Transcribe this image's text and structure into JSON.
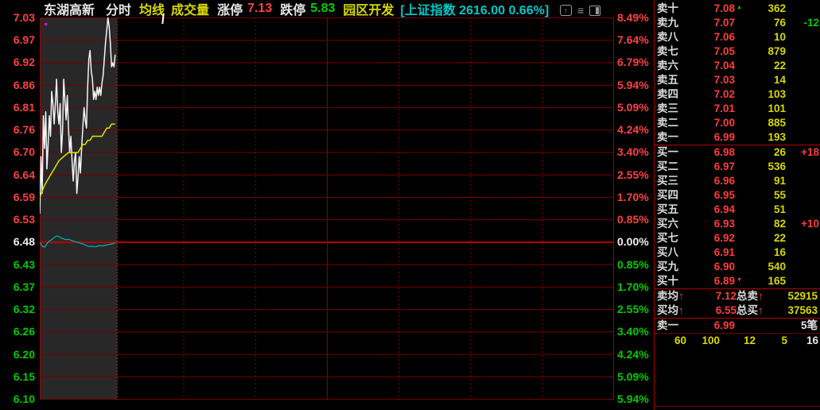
{
  "header": {
    "stock_name": "东湖高新",
    "tab_minute": "分时",
    "tab_avg_line": "均线",
    "tab_volume": "成交量",
    "limit_up_label": "涨停",
    "limit_up_value": "7.13",
    "limit_down_label": "跌停",
    "limit_down_value": "5.83",
    "sector": "园区开发",
    "index_info": "[上证指数 2616.00 0.66%]",
    "icons": [
      "top-circle-icon",
      "menu-icon",
      "layout-icon"
    ]
  },
  "glyphs": {
    "up_arrow": "↑",
    "ask_scroll_up": "▲",
    "bid_scroll_down": "▼"
  },
  "colors": {
    "up_red": "#ff3c3c",
    "down_green": "#00cc00",
    "volume_yellow": "#d8d800",
    "grid_red": "#780000",
    "index_cyan": "#00c8c8",
    "elapsed_band": "#282828"
  },
  "chart_data": {
    "type": "line",
    "title": "东湖高新 分时",
    "prev_close": 6.48,
    "session_minutes": 240,
    "current_minute": 31.5,
    "y_top_price": 7.031,
    "y_bottom_price": 6.0945,
    "grid": true,
    "left_axis_prices": [
      "7.03",
      "6.97",
      "6.92",
      "6.86",
      "6.81",
      "6.76",
      "6.70",
      "6.64",
      "6.59",
      "6.53",
      "6.48",
      "6.43",
      "6.37",
      "6.32",
      "6.26",
      "6.20",
      "6.15",
      "6.10"
    ],
    "right_axis_pcts": [
      "8.49%",
      "7.64%",
      "6.79%",
      "5.94%",
      "5.09%",
      "4.24%",
      "3.40%",
      "2.55%",
      "1.70%",
      "0.85%",
      "0.00%",
      "0.85%",
      "1.70%",
      "2.55%",
      "3.40%",
      "4.24%",
      "5.09%",
      "5.94%"
    ],
    "series": [
      {
        "name": "price",
        "points": [
          [
            0,
            6.55
          ],
          [
            0.5,
            6.69
          ],
          [
            1,
            6.6
          ],
          [
            1.5,
            6.79
          ],
          [
            2,
            6.71
          ],
          [
            2.5,
            6.8
          ],
          [
            3,
            6.66
          ],
          [
            3.5,
            6.72
          ],
          [
            4,
            6.79
          ],
          [
            4.5,
            6.74
          ],
          [
            5,
            6.85
          ],
          [
            5.5,
            6.82
          ],
          [
            6,
            6.77
          ],
          [
            6.5,
            6.82
          ],
          [
            7,
            6.88
          ],
          [
            7.5,
            6.8
          ],
          [
            8,
            6.77
          ],
          [
            8.5,
            6.82
          ],
          [
            9,
            6.7
          ],
          [
            9.5,
            6.75
          ],
          [
            10,
            6.88
          ],
          [
            10.5,
            6.83
          ],
          [
            11,
            6.78
          ],
          [
            11.5,
            6.84
          ],
          [
            12,
            6.76
          ],
          [
            12.5,
            6.7
          ],
          [
            13,
            6.74
          ],
          [
            13.5,
            6.68
          ],
          [
            14,
            6.63
          ],
          [
            14.5,
            6.68
          ],
          [
            15,
            6.7
          ],
          [
            15.5,
            6.6
          ],
          [
            16,
            6.64
          ],
          [
            16.5,
            6.69
          ],
          [
            17,
            6.65
          ],
          [
            17.5,
            6.71
          ],
          [
            18,
            6.76
          ],
          [
            18.5,
            6.81
          ],
          [
            19,
            6.78
          ],
          [
            19.5,
            6.76
          ],
          [
            20,
            6.86
          ],
          [
            20.5,
            6.93
          ],
          [
            21,
            6.95
          ],
          [
            21.5,
            6.9
          ],
          [
            22,
            6.88
          ],
          [
            22.5,
            6.83
          ],
          [
            23,
            6.85
          ],
          [
            23.5,
            6.83
          ],
          [
            24,
            6.86
          ],
          [
            24.5,
            6.84
          ],
          [
            25,
            6.86
          ],
          [
            25.5,
            6.84
          ],
          [
            26,
            6.87
          ],
          [
            26.5,
            6.89
          ],
          [
            27,
            6.93
          ],
          [
            27.5,
            6.97
          ],
          [
            28,
            7.0
          ],
          [
            28.5,
            7.03
          ],
          [
            29,
            7.01
          ],
          [
            29.5,
            6.97
          ],
          [
            30,
            6.91
          ],
          [
            30.5,
            6.92
          ],
          [
            31,
            6.91
          ],
          [
            31.5,
            6.94
          ]
        ]
      },
      {
        "name": "average",
        "points": [
          [
            0,
            6.59
          ],
          [
            2,
            6.62
          ],
          [
            4,
            6.64
          ],
          [
            6,
            6.66
          ],
          [
            8,
            6.68
          ],
          [
            10,
            6.69
          ],
          [
            12,
            6.7
          ],
          [
            14,
            6.7
          ],
          [
            16,
            6.7
          ],
          [
            17,
            6.71
          ],
          [
            18,
            6.72
          ],
          [
            19,
            6.72
          ],
          [
            20,
            6.73
          ],
          [
            21,
            6.73
          ],
          [
            22,
            6.74
          ],
          [
            23,
            6.74
          ],
          [
            24,
            6.74
          ],
          [
            25,
            6.74
          ],
          [
            26,
            6.74
          ],
          [
            27,
            6.75
          ],
          [
            28,
            6.76
          ],
          [
            29,
            6.76
          ],
          [
            30,
            6.77
          ],
          [
            31.5,
            6.77
          ]
        ]
      },
      {
        "name": "index_pct",
        "points": [
          [
            0,
            0.0
          ],
          [
            0.5,
            -0.06
          ],
          [
            1,
            -0.15
          ],
          [
            2,
            -0.18
          ],
          [
            3,
            -0.05
          ],
          [
            4,
            0.05
          ],
          [
            5,
            0.1
          ],
          [
            6,
            0.18
          ],
          [
            7,
            0.24
          ],
          [
            8,
            0.22
          ],
          [
            9,
            0.16
          ],
          [
            10,
            0.13
          ],
          [
            11,
            0.1
          ],
          [
            12,
            0.12
          ],
          [
            13,
            0.08
          ],
          [
            14,
            0.05
          ],
          [
            15,
            0.02
          ],
          [
            16,
            0.0
          ],
          [
            17,
            -0.03
          ],
          [
            18,
            -0.06
          ],
          [
            19,
            -0.1
          ],
          [
            20,
            -0.14
          ],
          [
            21,
            -0.16
          ],
          [
            22,
            -0.15
          ],
          [
            23,
            -0.17
          ],
          [
            24,
            -0.15
          ],
          [
            25,
            -0.12
          ],
          [
            26,
            -0.14
          ],
          [
            27,
            -0.12
          ],
          [
            28,
            -0.1
          ],
          [
            29,
            -0.08
          ],
          [
            30,
            -0.06
          ],
          [
            31,
            -0.04
          ],
          [
            31.5,
            -0.01
          ]
        ]
      }
    ]
  },
  "order_book": {
    "asks": [
      {
        "label": "卖十",
        "price": "7.08",
        "vol": "362",
        "delta": "",
        "arrow": "▲"
      },
      {
        "label": "卖九",
        "price": "7.07",
        "vol": "76",
        "delta": "-12",
        "arrow": ""
      },
      {
        "label": "卖八",
        "price": "7.06",
        "vol": "10",
        "delta": "",
        "arrow": ""
      },
      {
        "label": "卖七",
        "price": "7.05",
        "vol": "879",
        "delta": "",
        "arrow": ""
      },
      {
        "label": "卖六",
        "price": "7.04",
        "vol": "22",
        "delta": "",
        "arrow": ""
      },
      {
        "label": "卖五",
        "price": "7.03",
        "vol": "14",
        "delta": "",
        "arrow": ""
      },
      {
        "label": "卖四",
        "price": "7.02",
        "vol": "103",
        "delta": "",
        "arrow": ""
      },
      {
        "label": "卖三",
        "price": "7.01",
        "vol": "101",
        "delta": "",
        "arrow": ""
      },
      {
        "label": "卖二",
        "price": "7.00",
        "vol": "885",
        "delta": "",
        "arrow": ""
      },
      {
        "label": "卖一",
        "price": "6.99",
        "vol": "193",
        "delta": "",
        "arrow": ""
      }
    ],
    "bids": [
      {
        "label": "买一",
        "price": "6.98",
        "vol": "26",
        "delta": "+18",
        "arrow": ""
      },
      {
        "label": "买二",
        "price": "6.97",
        "vol": "536",
        "delta": "",
        "arrow": ""
      },
      {
        "label": "买三",
        "price": "6.96",
        "vol": "91",
        "delta": "",
        "arrow": ""
      },
      {
        "label": "买四",
        "price": "6.95",
        "vol": "55",
        "delta": "",
        "arrow": ""
      },
      {
        "label": "买五",
        "price": "6.94",
        "vol": "51",
        "delta": "",
        "arrow": ""
      },
      {
        "label": "买六",
        "price": "6.93",
        "vol": "82",
        "delta": "+10",
        "arrow": ""
      },
      {
        "label": "买七",
        "price": "6.92",
        "vol": "22",
        "delta": "",
        "arrow": ""
      },
      {
        "label": "买八",
        "price": "6.91",
        "vol": "16",
        "delta": "",
        "arrow": ""
      },
      {
        "label": "买九",
        "price": "6.90",
        "vol": "540",
        "delta": "",
        "arrow": ""
      },
      {
        "label": "买十",
        "price": "6.89",
        "vol": "165",
        "delta": "",
        "arrow": "▼"
      }
    ],
    "summary": {
      "ask_avg_label": "卖均",
      "ask_avg": "7.12",
      "total_ask_label": "总卖",
      "total_ask": "52915",
      "bid_avg_label": "买均",
      "bid_avg": "6.55",
      "total_bid_label": "总买",
      "total_bid": "37563"
    },
    "last_trade": {
      "label": "卖一",
      "price": "6.99",
      "count": "5笔"
    },
    "tick_volumes": [
      "60",
      "100",
      "12",
      "5",
      "16"
    ]
  }
}
